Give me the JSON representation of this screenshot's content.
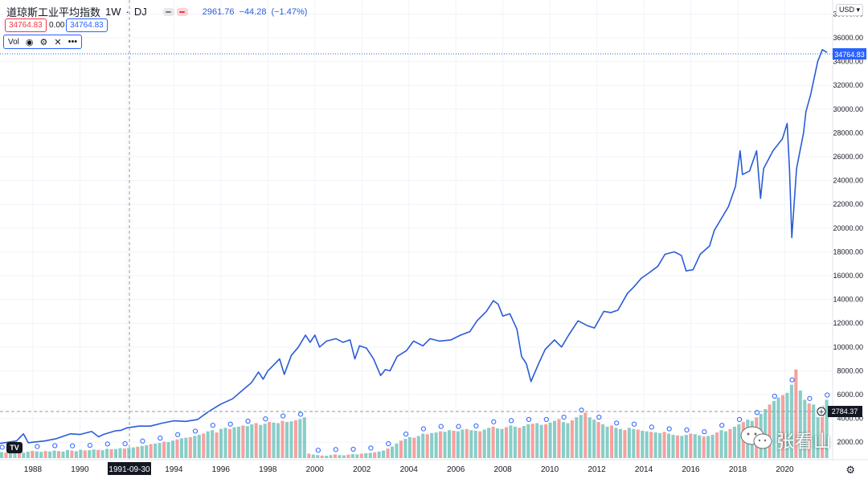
{
  "header": {
    "symbol_title": "道琼斯工业平均指数",
    "interval": "1W",
    "exchange": "DJ",
    "change_value": "2961.76",
    "change_abs": "−44.28",
    "change_pct": "(−1.47%)"
  },
  "price_boxes": {
    "bid": "34764.83",
    "spread": "0.00",
    "ask": "34764.83"
  },
  "volume_legend": {
    "label": "Vol"
  },
  "currency_button": "USD",
  "crosshair_date": "1991-09-30",
  "last_price_label": "34764.83",
  "volume_price_label": "2784.37",
  "logo_text": "TV",
  "watermark": "张看山",
  "colors": {
    "line": "#2a5bd7",
    "vol_up": "#26a69a",
    "vol_down": "#ef5350",
    "last_price": "#2962ff",
    "crosshair_tag": "#131722"
  },
  "chart_data": [
    {
      "type": "line",
      "title": "道琼斯工业平均指数",
      "xlabel": "",
      "ylabel": "",
      "x_ticks": [
        "1988",
        "1990",
        "1992",
        "1994",
        "1996",
        "1998",
        "2000",
        "2002",
        "2004",
        "2006",
        "2008",
        "2010",
        "2012",
        "2014",
        "2016",
        "2018",
        "2020"
      ],
      "y_ticks": [
        "38000.00",
        "36000.00",
        "34000.00",
        "32000.00",
        "30000.00",
        "28000.00",
        "26000.00",
        "24000.00",
        "22000.00",
        "20000.00",
        "18000.00",
        "16000.00",
        "14000.00",
        "12000.00",
        "10000.00",
        "8000.00",
        "6000.00",
        "4000.00",
        "2000.00"
      ],
      "ylim": [
        1000,
        38500
      ],
      "xlim": [
        1986.6,
        2021.9
      ],
      "grid": true,
      "legend": "top-left",
      "series": [
        {
          "name": "道琼斯工业平均指数",
          "x": [
            1986.6,
            1987.3,
            1987.6,
            1987.8,
            1988.0,
            1988.5,
            1989.0,
            1989.6,
            1990.0,
            1990.5,
            1990.8,
            1991.0,
            1991.5,
            1991.75,
            1992.0,
            1992.5,
            1993.0,
            1993.5,
            1994.0,
            1994.5,
            1995.0,
            1995.5,
            1996.0,
            1996.5,
            1997.0,
            1997.3,
            1997.6,
            1997.8,
            1998.0,
            1998.5,
            1998.7,
            1999.0,
            1999.3,
            1999.6,
            1999.8,
            2000.0,
            2000.2,
            2000.5,
            2000.9,
            2001.2,
            2001.5,
            2001.7,
            2001.9,
            2002.2,
            2002.5,
            2002.8,
            2003.0,
            2003.2,
            2003.5,
            2003.9,
            2004.2,
            2004.6,
            2004.9,
            2005.3,
            2005.8,
            2006.2,
            2006.6,
            2006.9,
            2007.3,
            2007.6,
            2007.8,
            2008.0,
            2008.3,
            2008.6,
            2008.8,
            2009.0,
            2009.2,
            2009.5,
            2009.8,
            2010.2,
            2010.5,
            2010.8,
            2011.2,
            2011.6,
            2011.9,
            2012.3,
            2012.6,
            2012.9,
            2013.3,
            2013.6,
            2013.9,
            2014.2,
            2014.6,
            2014.9,
            2015.3,
            2015.6,
            2015.8,
            2016.1,
            2016.4,
            2016.8,
            2017.0,
            2017.3,
            2017.6,
            2017.9,
            2018.1,
            2018.2,
            2018.5,
            2018.8,
            2018.97,
            2019.1,
            2019.5,
            2019.9,
            2020.1,
            2020.2,
            2020.3,
            2020.5,
            2020.8,
            2020.9,
            2021.1,
            2021.4,
            2021.6,
            2021.8
          ],
          "values": [
            1900,
            2100,
            2700,
            1950,
            2000,
            2100,
            2300,
            2700,
            2650,
            2900,
            2450,
            2650,
            2950,
            3000,
            3200,
            3350,
            3350,
            3600,
            3800,
            3750,
            3900,
            4600,
            5200,
            5650,
            6500,
            7000,
            7900,
            7300,
            8000,
            9000,
            7700,
            9300,
            10000,
            11000,
            10400,
            11000,
            10000,
            10500,
            10700,
            10400,
            10600,
            9000,
            10100,
            9900,
            9000,
            7600,
            8100,
            8000,
            9200,
            9700,
            10500,
            10100,
            10700,
            10500,
            10600,
            11000,
            11300,
            12200,
            13000,
            13900,
            13600,
            12600,
            12800,
            11500,
            9200,
            8600,
            7100,
            8500,
            9800,
            10600,
            10000,
            11000,
            12200,
            11800,
            11600,
            13000,
            12900,
            13100,
            14500,
            15100,
            15800,
            16200,
            16800,
            17800,
            18000,
            17700,
            16400,
            16500,
            17800,
            18500,
            19800,
            20800,
            21800,
            23500,
            26500,
            24500,
            24800,
            26500,
            22500,
            25000,
            26500,
            27500,
            28800,
            25000,
            19200,
            25000,
            28000,
            29800,
            31200,
            34000,
            35000,
            34765
          ]
        }
      ]
    },
    {
      "type": "bar",
      "title": "Vol",
      "x_start": 1986.6,
      "x_end": 2021.9,
      "values": [
        520,
        480,
        610,
        900,
        540,
        470,
        560,
        620,
        580,
        540,
        610,
        570,
        650,
        600,
        560,
        700,
        640,
        590,
        720,
        660,
        680,
        740,
        700,
        680,
        800,
        760,
        780,
        850,
        820,
        880,
        920,
        980,
        1050,
        1100,
        1200,
        1250,
        1300,
        1400,
        1380,
        1500,
        1600,
        1700,
        1750,
        1800,
        1900,
        2000,
        2100,
        2300,
        2400,
        2200,
        2500,
        2600,
        2500,
        2650,
        2700,
        2800,
        2750,
        2900,
        3000,
        2850,
        2950,
        3100,
        3050,
        3000,
        3200,
        3100,
        3150,
        3250,
        3350,
        3500,
        380,
        300,
        260,
        220,
        200,
        260,
        320,
        260,
        240,
        300,
        350,
        320,
        380,
        420,
        450,
        500,
        560,
        650,
        820,
        1000,
        1250,
        1500,
        1650,
        1800,
        1750,
        1900,
        2100,
        2050,
        2150,
        2200,
        2300,
        2250,
        2400,
        2350,
        2300,
        2450,
        2500,
        2400,
        2350,
        2300,
        2450,
        2600,
        2700,
        2550,
        2500,
        2650,
        2800,
        2700,
        2600,
        2750,
        2900,
        2950,
        3000,
        2850,
        2900,
        3050,
        3200,
        3350,
        3100,
        3000,
        3250,
        3500,
        3700,
        3900,
        3500,
        3300,
        3100,
        2900,
        2700,
        2800,
        2600,
        2500,
        2400,
        2600,
        2500,
        2450,
        2350,
        2300,
        2250,
        2200,
        2150,
        2250,
        2100,
        2000,
        1950,
        1900,
        2000,
        2100,
        2050,
        1950,
        1850,
        1900,
        2000,
        2200,
        2400,
        2300,
        2500,
        2700,
        2900,
        3100,
        3300,
        3200,
        3500,
        3800,
        4200,
        4600,
        4900,
        5200,
        5400,
        5600,
        6300,
        7600,
        5800,
        5000,
        4700,
        4600,
        4300,
        4500,
        5000
      ],
      "ylim": [
        0,
        10000
      ]
    }
  ]
}
